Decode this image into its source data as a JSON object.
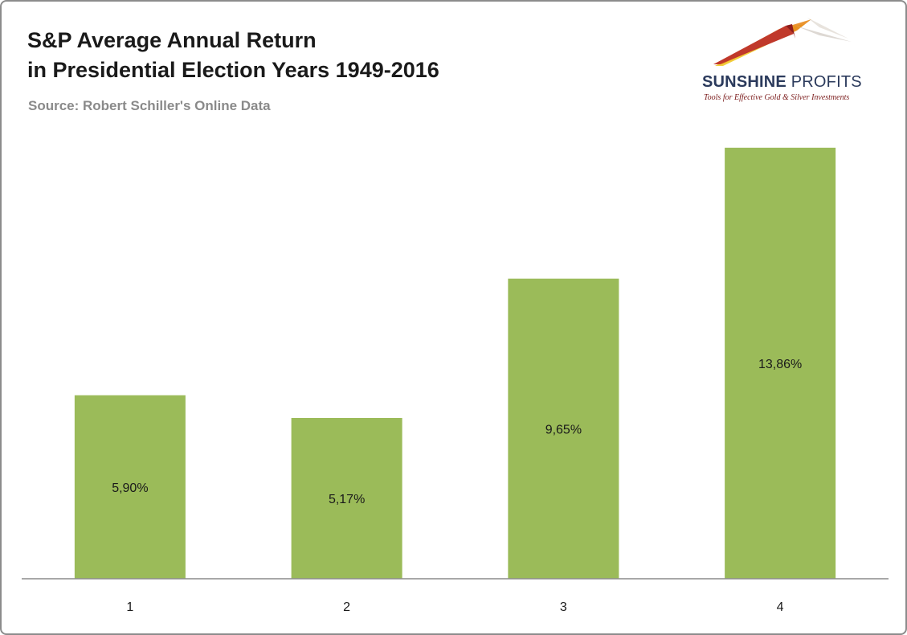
{
  "chart_data": {
    "type": "bar",
    "title": "S&P Average Annual Return in Presidential Election Years 1949-2016",
    "title_lines": [
      "S&P Average Annual Return",
      "in Presidential Election Years 1949-2016"
    ],
    "subtitle": "Source: Robert Schiller's Online Data",
    "categories": [
      "1",
      "2",
      "3",
      "4"
    ],
    "values": [
      5.9,
      5.17,
      9.65,
      13.86
    ],
    "data_labels": [
      "5,90%",
      "5,17%",
      "9,65%",
      "13,86%"
    ],
    "xlabel": "",
    "ylabel": "",
    "ylim": [
      0,
      16
    ],
    "grid": false,
    "bar_color": "#9bbb59"
  },
  "logo": {
    "name_bold": "SUNSHINE",
    "name_light": "PROFITS",
    "tagline": "Tools for Effective Gold & Silver Investments",
    "colors": [
      "#c0392b",
      "#e67e22",
      "#f1c40f"
    ]
  }
}
